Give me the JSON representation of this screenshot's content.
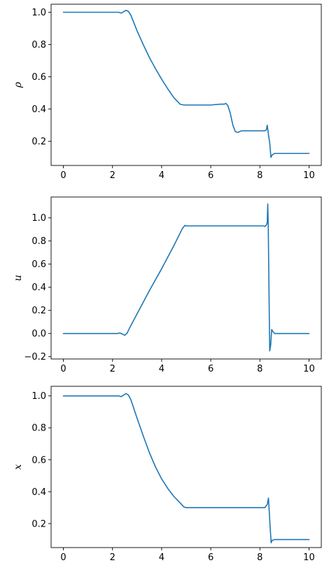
{
  "chart_data": [
    {
      "type": "line",
      "title": "",
      "xlabel": "",
      "ylabel": "ρ",
      "xlim": [
        -0.5,
        10.5
      ],
      "ylim": [
        0.05,
        1.05
      ],
      "xticks": [
        0,
        2,
        4,
        6,
        8,
        10
      ],
      "xtick_labels": [
        "0",
        "2",
        "4",
        "6",
        "8",
        "10"
      ],
      "yticks": [
        0.2,
        0.4,
        0.6,
        0.8,
        1.0
      ],
      "ytick_labels": [
        "0.2",
        "0.4",
        "0.6",
        "0.8",
        "1.0"
      ],
      "grid": false,
      "legend": "none",
      "color": "#1f77b4",
      "series": [
        {
          "x": [
            0,
            1,
            2,
            2.25,
            2.35,
            2.45,
            2.55,
            2.65,
            2.75,
            3,
            3.25,
            3.5,
            3.75,
            4,
            4.25,
            4.5,
            4.75,
            4.9,
            5.0,
            5.5,
            6.0,
            6.4,
            6.55,
            6.62,
            6.7,
            6.8,
            6.9,
            7.0,
            7.1,
            7.25,
            7.5,
            8.0,
            8.2,
            8.26,
            8.3,
            8.35,
            8.4,
            8.45,
            8.5,
            8.6,
            9,
            10
          ],
          "y": [
            1.0,
            1.0,
            1.0,
            1.0,
            0.995,
            1.003,
            1.012,
            1.005,
            0.98,
            0.885,
            0.8,
            0.72,
            0.65,
            0.585,
            0.525,
            0.47,
            0.43,
            0.425,
            0.425,
            0.425,
            0.425,
            0.43,
            0.43,
            0.435,
            0.42,
            0.37,
            0.3,
            0.26,
            0.255,
            0.265,
            0.265,
            0.265,
            0.265,
            0.27,
            0.3,
            0.24,
            0.19,
            0.1,
            0.115,
            0.125,
            0.125,
            0.125
          ]
        }
      ]
    },
    {
      "type": "line",
      "title": "",
      "xlabel": "",
      "ylabel": "u",
      "xlim": [
        -0.5,
        10.5
      ],
      "ylim": [
        -0.22,
        1.18
      ],
      "xticks": [
        0,
        2,
        4,
        6,
        8,
        10
      ],
      "xtick_labels": [
        "0",
        "2",
        "4",
        "6",
        "8",
        "10"
      ],
      "yticks": [
        -0.2,
        0.0,
        0.2,
        0.4,
        0.6,
        0.8,
        1.0
      ],
      "ytick_labels": [
        "−0.2",
        "0.0",
        "0.2",
        "0.4",
        "0.6",
        "0.8",
        "1.0"
      ],
      "grid": false,
      "legend": "none",
      "color": "#1f77b4",
      "series": [
        {
          "x": [
            0,
            1,
            2,
            2.2,
            2.3,
            2.4,
            2.5,
            2.6,
            2.7,
            3,
            3.5,
            4,
            4.5,
            4.85,
            4.95,
            5.0,
            5.5,
            6,
            7,
            8.0,
            8.15,
            8.2,
            8.27,
            8.3,
            8.32,
            8.34,
            8.38,
            8.4,
            8.44,
            8.48,
            8.52,
            8.6,
            9,
            10
          ],
          "y": [
            0.0,
            0.0,
            0.0,
            0.0,
            0.005,
            -0.005,
            -0.015,
            0.005,
            0.05,
            0.17,
            0.37,
            0.56,
            0.76,
            0.91,
            0.935,
            0.93,
            0.93,
            0.93,
            0.93,
            0.93,
            0.93,
            0.925,
            0.94,
            0.96,
            1.12,
            0.95,
            0.2,
            -0.15,
            -0.1,
            0.035,
            0.02,
            0.0,
            0.0,
            0.0
          ]
        }
      ]
    },
    {
      "type": "line",
      "title": "",
      "xlabel": "",
      "ylabel": "x",
      "xlim": [
        -0.5,
        10.5
      ],
      "ylim": [
        0.05,
        1.06
      ],
      "xticks": [
        0,
        2,
        4,
        6,
        8,
        10
      ],
      "xtick_labels": [
        "0",
        "2",
        "4",
        "6",
        "8",
        "10"
      ],
      "yticks": [
        0.2,
        0.4,
        0.6,
        0.8,
        1.0
      ],
      "ytick_labels": [
        "0.2",
        "0.4",
        "0.6",
        "0.8",
        "1.0"
      ],
      "grid": false,
      "legend": "none",
      "color": "#1f77b4",
      "series": [
        {
          "x": [
            0,
            1,
            2,
            2.25,
            2.35,
            2.45,
            2.55,
            2.65,
            2.75,
            3,
            3.25,
            3.5,
            3.75,
            4,
            4.25,
            4.5,
            4.75,
            4.9,
            5.0,
            5.5,
            6,
            7,
            8.0,
            8.2,
            8.25,
            8.3,
            8.35,
            8.42,
            8.46,
            8.5,
            8.6,
            9,
            10
          ],
          "y": [
            1.0,
            1.0,
            1.0,
            1.0,
            0.995,
            1.005,
            1.015,
            1.005,
            0.975,
            0.86,
            0.75,
            0.645,
            0.555,
            0.48,
            0.42,
            0.37,
            0.33,
            0.305,
            0.3,
            0.3,
            0.3,
            0.3,
            0.3,
            0.3,
            0.31,
            0.32,
            0.36,
            0.17,
            0.08,
            0.095,
            0.1,
            0.1,
            0.1
          ]
        }
      ]
    }
  ]
}
